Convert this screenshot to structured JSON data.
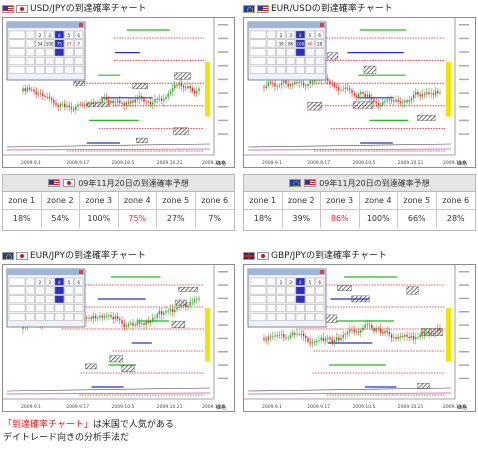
{
  "panels": [
    {
      "title": "USD/JPYの到達確率チャート",
      "flags": [
        "us",
        "jp"
      ],
      "window": {
        "rows": [
          [
            "",
            "2",
            "3",
            "4",
            "5",
            "6"
          ],
          [
            "",
            "54",
            "100",
            "75",
            "27",
            "7"
          ],
          [
            "",
            "",
            "",
            "",
            "",
            ""
          ],
          [
            "",
            "",
            "",
            "",
            "",
            ""
          ],
          [
            "",
            "",
            "",
            "",
            "",
            ""
          ]
        ]
      },
      "x_labels": [
        "2009.9.1",
        "2009.9.17",
        "2009.10.5",
        "2009.10.21",
        "2009.11.6"
      ],
      "axis_right": "価格"
    },
    {
      "title": "EUR/USDの到達確率チャート",
      "flags": [
        "eu",
        "us"
      ],
      "window": {
        "rows": [
          [
            "",
            "2",
            "3",
            "4",
            "5",
            "6"
          ],
          [
            "",
            "39",
            "86",
            "100",
            "66",
            "28"
          ],
          [
            "",
            "",
            "",
            "",
            "",
            ""
          ],
          [
            "",
            "",
            "",
            "",
            "",
            ""
          ],
          [
            "",
            "",
            "",
            "",
            "",
            ""
          ]
        ]
      },
      "x_labels": [
        "2009.9.1",
        "2009.9.17",
        "2009.10.5",
        "2009.10.21",
        "2009.11.6"
      ],
      "axis_right": "価格"
    },
    {
      "title": "EUR/JPYの到達確率チャート",
      "flags": [
        "eu",
        "jp"
      ],
      "window": {
        "rows": [
          [
            "",
            "2",
            "3",
            "4",
            "5",
            "6"
          ],
          [
            "",
            "",
            "",
            "",
            "",
            ""
          ],
          [
            "",
            "",
            "",
            "",
            "",
            ""
          ],
          [
            "",
            "",
            "",
            "",
            "",
            ""
          ],
          [
            "",
            "",
            "",
            "",
            "",
            ""
          ]
        ]
      },
      "x_labels": [
        "2009.9.1",
        "2009.9.17",
        "2009.10.5",
        "2009.10.21",
        "2009.11.6"
      ],
      "axis_right": "価格"
    },
    {
      "title": "GBP/JPYの到達確率チャート",
      "flags": [
        "gb",
        "jp"
      ],
      "window": {
        "rows": [
          [
            "",
            "2",
            "3",
            "4",
            "5",
            "6"
          ],
          [
            "",
            "",
            "",
            "",
            "",
            ""
          ],
          [
            "",
            "",
            "",
            "",
            "",
            ""
          ],
          [
            "",
            "",
            "",
            "",
            "",
            ""
          ],
          [
            "",
            "",
            "",
            "",
            "",
            ""
          ]
        ]
      },
      "x_labels": [
        "2009.9.1",
        "2009.9.17",
        "2009.10.5",
        "2009.10.21",
        "2009.11.6"
      ],
      "axis_right": "価格"
    }
  ],
  "forecasts": [
    {
      "title": "09年11月20日の到達確率予想",
      "flags": [
        "us",
        "jp"
      ],
      "zones": [
        "zone 1",
        "zone 2",
        "zone 3",
        "zone 4",
        "zone 5",
        "zone 6"
      ],
      "values": [
        "18%",
        "54%",
        "100%",
        "75%",
        "27%",
        "7%"
      ],
      "highlight_index": 3
    },
    {
      "title": "09年11月20日の到達確率予想",
      "flags": [
        "eu",
        "us"
      ],
      "zones": [
        "zone 1",
        "zone 2",
        "zone 3",
        "zone 4",
        "zone 5",
        "zone 6"
      ],
      "values": [
        "18%",
        "39%",
        "86%",
        "100%",
        "66%",
        "28%"
      ],
      "highlight_index": 2
    }
  ],
  "caption": {
    "highlight": "「到達確率チャート」",
    "line1_rest": "は米国で人気がある",
    "line2": "デイトレード向きの分析手法だ"
  },
  "colors": {
    "accent_red": "#e02a2a",
    "caption_red": "#d81a1a",
    "header_gray": "#e6e6e6",
    "candle_up": "#2ca02c",
    "candle_down": "#d62828",
    "zone_blue": "#2233cc",
    "zone_green": "#22bb22",
    "zone_yellow": "#f2e600",
    "zone_red_dotted": "#e02020",
    "overlay_window": "#dfe8f4"
  }
}
